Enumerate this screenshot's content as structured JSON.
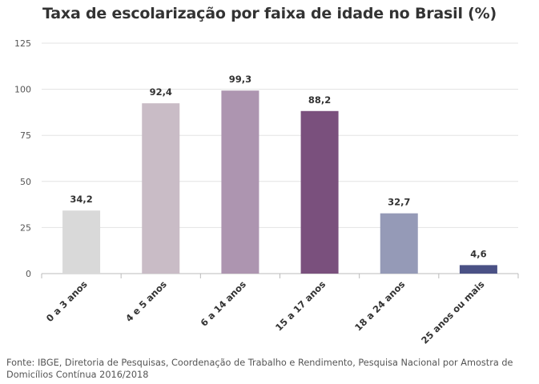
{
  "chart_data": {
    "type": "bar",
    "title": "Taxa de escolarização por faixa de idade no Brasil (%)",
    "xlabel": "",
    "ylabel": "",
    "categories": [
      "0 a 3 anos",
      "4 e 5 anos",
      "6 a 14 anos",
      "15 a 17 anos",
      "18 a 24 anos",
      "25 anos ou mais"
    ],
    "values": [
      34.2,
      92.4,
      99.3,
      88.2,
      32.7,
      4.6
    ],
    "value_labels": [
      "34,2",
      "92,4",
      "99,3",
      "88,2",
      "32,7",
      "4,6"
    ],
    "bar_colors": [
      "#d9d9d9",
      "#c9bcc6",
      "#ad95b0",
      "#7a507d",
      "#959ab7",
      "#4a5185"
    ],
    "ylim": [
      0,
      125
    ],
    "yticks": [
      0,
      25,
      50,
      75,
      100,
      125
    ],
    "grid": true,
    "legend": "none"
  },
  "source": "Fonte: IBGE, Diretoria de Pesquisas, Coordenação de Trabalho e Rendimento, Pesquisa Nacional por Amostra de Domicílios Contínua 2016/2018"
}
